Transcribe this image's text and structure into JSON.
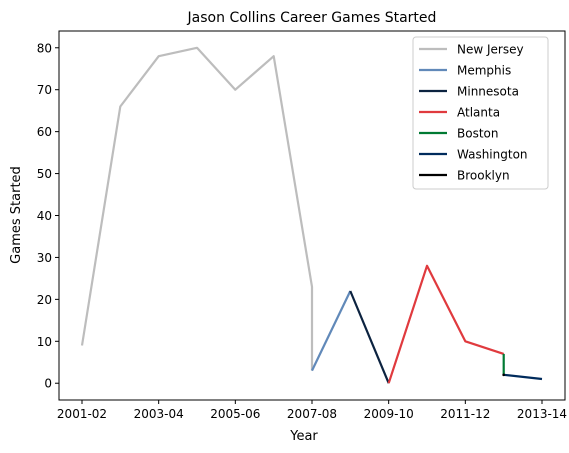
{
  "chart_data": {
    "type": "line",
    "title": "Jason Collins Career Games Started",
    "xlabel": "Year",
    "ylabel": "Games Started",
    "x_tick_labels": [
      "2001-02",
      "2003-04",
      "2005-06",
      "2007-08",
      "2009-10",
      "2011-12",
      "2013-14"
    ],
    "x_tick_positions": [
      0,
      2,
      4,
      6,
      8,
      10,
      12
    ],
    "xlim": [
      -0.6,
      12.6
    ],
    "ylim": [
      -4,
      84
    ],
    "y_ticks": [
      0,
      10,
      20,
      30,
      40,
      50,
      60,
      70,
      80
    ],
    "grid": false,
    "legend_position": "top-right",
    "series": [
      {
        "name": "New Jersey",
        "color": "#bdbdbd",
        "points": [
          [
            0,
            9
          ],
          [
            1,
            66
          ],
          [
            2,
            78
          ],
          [
            3,
            80
          ],
          [
            4,
            70
          ],
          [
            5,
            78
          ],
          [
            6,
            23
          ],
          [
            6,
            3
          ]
        ]
      },
      {
        "name": "Memphis",
        "color": "#6189b9",
        "points": [
          [
            6,
            3
          ],
          [
            7,
            22
          ]
        ]
      },
      {
        "name": "Minnesota",
        "color": "#0c2340",
        "points": [
          [
            7,
            22
          ],
          [
            8,
            0
          ]
        ]
      },
      {
        "name": "Atlanta",
        "color": "#e03a3e",
        "points": [
          [
            8,
            0
          ],
          [
            9,
            28
          ],
          [
            10,
            10
          ],
          [
            11,
            7
          ]
        ]
      },
      {
        "name": "Boston",
        "color": "#007a33",
        "points": [
          [
            11,
            7
          ],
          [
            11,
            2
          ]
        ]
      },
      {
        "name": "Washington",
        "color": "#002b5c",
        "points": [
          [
            11,
            2
          ],
          [
            12,
            1
          ]
        ]
      },
      {
        "name": "Brooklyn",
        "color": "#000000",
        "points": [
          [
            11,
            2
          ]
        ]
      }
    ]
  }
}
